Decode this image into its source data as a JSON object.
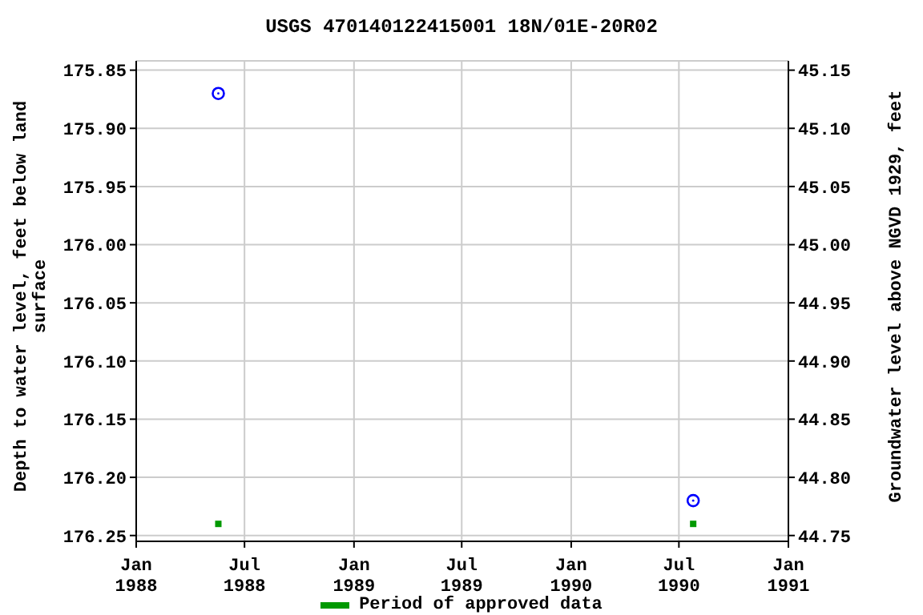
{
  "chart_data": {
    "type": "scatter",
    "title": "USGS 470140122415001 18N/01E-20R02",
    "xlabel": null,
    "ylabel": "Depth to water level, feet below land surface",
    "y2label": "Groundwater level above NGVD 1929, feet",
    "x": [
      "1988-05-18",
      "1990-07-25"
    ],
    "series": [
      {
        "color": "#0000ff",
        "values": [
          175.87,
          176.22
        ],
        "marker": "circle"
      },
      {
        "name": "Period of approved data",
        "color": "#009900",
        "values": [
          176.24,
          176.24
        ],
        "marker": "square"
      }
    ],
    "xlim": [
      "1988-01-01",
      "1991-01-01"
    ],
    "xticks": [
      {
        "value": "1988-01-01",
        "label": "Jan 1988"
      },
      {
        "value": "1988-07-01",
        "label": "Jul 1988"
      },
      {
        "value": "1989-01-01",
        "label": "Jan 1989"
      },
      {
        "value": "1989-07-01",
        "label": "Jul 1989"
      },
      {
        "value": "1990-01-01",
        "label": "Jan 1990"
      },
      {
        "value": "1990-07-01",
        "label": "Jul 1990"
      },
      {
        "value": "1991-01-01",
        "label": "Jan 1991"
      }
    ],
    "ylim": [
      176.255,
      175.842
    ],
    "yticks": [
      {
        "value": 175.85,
        "label": "175.85"
      },
      {
        "value": 175.9,
        "label": "175.90"
      },
      {
        "value": 175.95,
        "label": "175.95"
      },
      {
        "value": 176,
        "label": "176.00"
      },
      {
        "value": 176.05,
        "label": "176.05"
      },
      {
        "value": 176.1,
        "label": "176.10"
      },
      {
        "value": 176.15,
        "label": "176.15"
      },
      {
        "value": 176.2,
        "label": "176.20"
      },
      {
        "value": 176.25,
        "label": "176.25"
      }
    ],
    "y2lim": [
      44.745,
      45.158
    ],
    "y2ticks": [
      {
        "value": 44.75,
        "label": "44.75"
      },
      {
        "value": 44.8,
        "label": "44.80"
      },
      {
        "value": 44.85,
        "label": "44.85"
      },
      {
        "value": 44.9,
        "label": "44.90"
      },
      {
        "value": 44.95,
        "label": "44.95"
      },
      {
        "value": 45,
        "label": "45.00"
      },
      {
        "value": 45.05,
        "label": "45.05"
      },
      {
        "value": 45.1,
        "label": "45.10"
      },
      {
        "value": 45.15,
        "label": "45.15"
      }
    ],
    "grid": true,
    "legend": "bottom"
  }
}
